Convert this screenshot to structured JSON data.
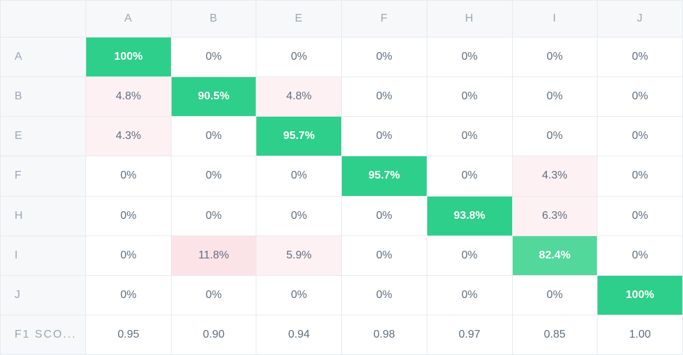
{
  "chart_data": {
    "type": "heatmap",
    "title": "",
    "columns": [
      "A",
      "B",
      "E",
      "F",
      "H",
      "I",
      "J"
    ],
    "rows": [
      "A",
      "B",
      "E",
      "F",
      "H",
      "I",
      "J"
    ],
    "values": [
      [
        "100%",
        "0%",
        "0%",
        "0%",
        "0%",
        "0%",
        "0%"
      ],
      [
        "4.8%",
        "90.5%",
        "4.8%",
        "0%",
        "0%",
        "0%",
        "0%"
      ],
      [
        "4.3%",
        "0%",
        "95.7%",
        "0%",
        "0%",
        "0%",
        "0%"
      ],
      [
        "0%",
        "0%",
        "0%",
        "95.7%",
        "0%",
        "4.3%",
        "0%"
      ],
      [
        "0%",
        "0%",
        "0%",
        "0%",
        "93.8%",
        "6.3%",
        "0%"
      ],
      [
        "0%",
        "11.8%",
        "5.9%",
        "0%",
        "0%",
        "82.4%",
        "0%"
      ],
      [
        "0%",
        "0%",
        "0%",
        "0%",
        "0%",
        "0%",
        "100%"
      ]
    ],
    "f1_label": "F1 SCO...",
    "f1_scores": [
      "0.95",
      "0.90",
      "0.94",
      "0.98",
      "0.97",
      "0.85",
      "1.00"
    ],
    "colors": {
      "diagonal": "#2ecf8a",
      "diagonal_light": "#52d89b",
      "off_diagonal": "#fdf1f3",
      "off_diagonal_strong": "#fce3e8",
      "zero": "#ffffff"
    }
  }
}
